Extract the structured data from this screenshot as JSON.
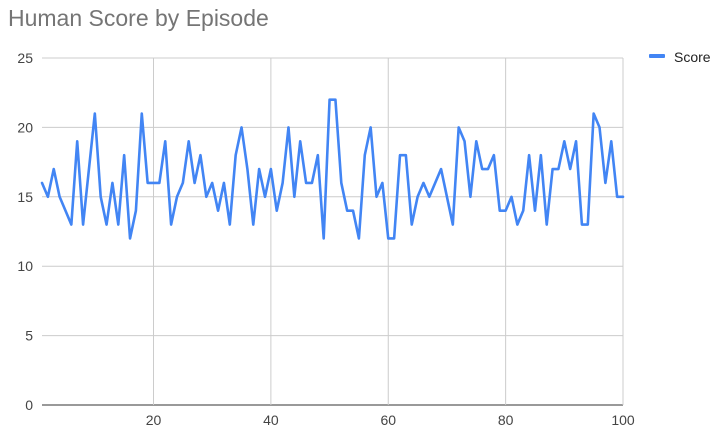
{
  "chart_data": {
    "type": "line",
    "title": "Human Score by Episode",
    "xlabel": "",
    "ylabel": "",
    "xlim": [
      1,
      100
    ],
    "ylim": [
      0,
      25
    ],
    "x_ticks": [
      20,
      40,
      60,
      80,
      100
    ],
    "y_ticks": [
      0,
      5,
      10,
      15,
      20,
      25
    ],
    "grid": true,
    "legend_position": "top-right",
    "series": [
      {
        "name": "Score",
        "color": "#4285F4",
        "x": [
          1,
          2,
          3,
          4,
          5,
          6,
          7,
          8,
          9,
          10,
          11,
          12,
          13,
          14,
          15,
          16,
          17,
          18,
          19,
          20,
          21,
          22,
          23,
          24,
          25,
          26,
          27,
          28,
          29,
          30,
          31,
          32,
          33,
          34,
          35,
          36,
          37,
          38,
          39,
          40,
          41,
          42,
          43,
          44,
          45,
          46,
          47,
          48,
          49,
          50,
          51,
          52,
          53,
          54,
          55,
          56,
          57,
          58,
          59,
          60,
          61,
          62,
          63,
          64,
          65,
          66,
          67,
          68,
          69,
          70,
          71,
          72,
          73,
          74,
          75,
          76,
          77,
          78,
          79,
          80,
          81,
          82,
          83,
          84,
          85,
          86,
          87,
          88,
          89,
          90,
          91,
          92,
          93,
          94,
          95,
          96,
          97,
          98,
          99,
          100
        ],
        "values": [
          16,
          15,
          17,
          15,
          14,
          13,
          19,
          13,
          17,
          21,
          15,
          13,
          16,
          13,
          18,
          12,
          14,
          21,
          16,
          16,
          16,
          19,
          13,
          15,
          16,
          19,
          16,
          18,
          15,
          16,
          14,
          16,
          13,
          18,
          20,
          17,
          13,
          17,
          15,
          17,
          14,
          16,
          20,
          15,
          19,
          16,
          16,
          18,
          12,
          22,
          22,
          16,
          14,
          14,
          12,
          18,
          20,
          15,
          16,
          12,
          12,
          18,
          18,
          13,
          15,
          16,
          15,
          16,
          17,
          15,
          13,
          20,
          19,
          15,
          19,
          17,
          17,
          18,
          14,
          14,
          15,
          13,
          14,
          18,
          14,
          18,
          13,
          17,
          17,
          19,
          17,
          19,
          13,
          13,
          21,
          20,
          16,
          19,
          15,
          15
        ]
      }
    ]
  }
}
